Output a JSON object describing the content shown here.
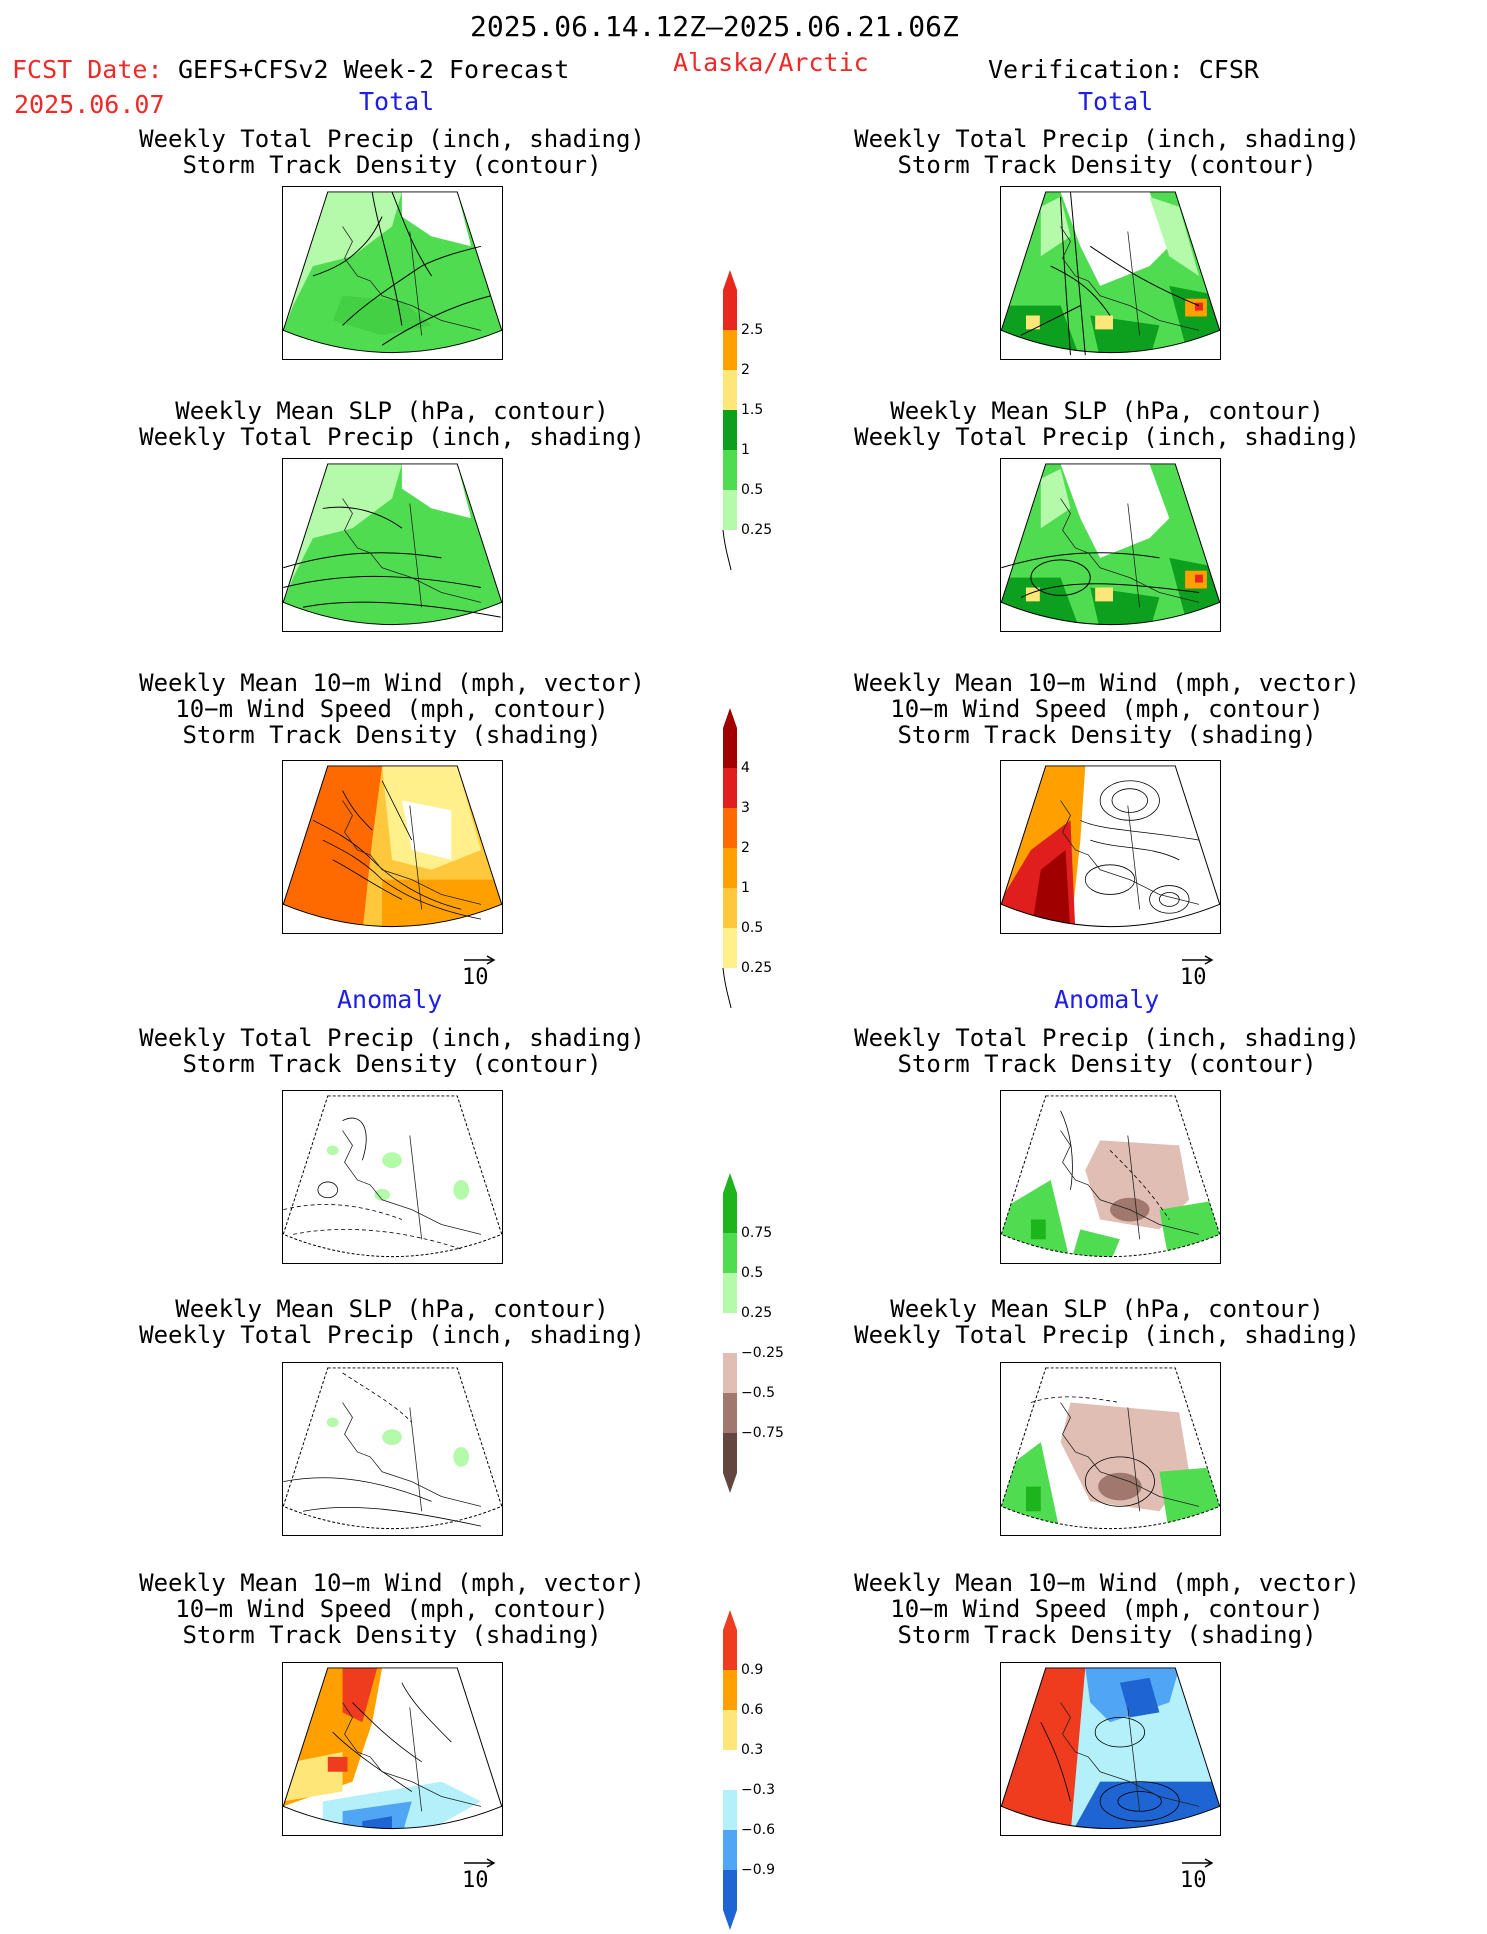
{
  "header": {
    "date_range": "2025.06.14.12Z–2025.06.21.06Z",
    "fcst_label": "FCST Date:",
    "model": "GEFS+CFSv2 Week-2 Forecast",
    "fcst_date": "2025.06.07",
    "region": "Alaska/Arctic",
    "verification": "Verification: CFSR"
  },
  "sections": {
    "total": "Total",
    "anomaly": "Anomaly"
  },
  "panel_titles": {
    "precip_storm": [
      "Weekly Total Precip (inch, shading)",
      "Storm Track Density (contour)"
    ],
    "slp_precip": [
      "Weekly Mean SLP (hPa, contour)",
      "Weekly Total Precip (inch, shading)"
    ],
    "wind_storm": [
      "Weekly Mean 10−m Wind (mph, vector)",
      "10−m Wind Speed (mph, contour)",
      "Storm Track Density (shading)"
    ]
  },
  "vector_reference": "10",
  "colorbars": [
    {
      "name": "precip-total",
      "labels": [
        "2.5",
        "2",
        "1.5",
        "1",
        "0.5",
        "0.25"
      ],
      "colors": [
        "#e8281e",
        "#ffa000",
        "#ffe678",
        "#0ca01e",
        "#50dc50",
        "#b4faaa"
      ]
    },
    {
      "name": "storm-total",
      "labels": [
        "4",
        "3",
        "2",
        "1",
        "0.5",
        "0.25"
      ],
      "colors": [
        "#a00000",
        "#e11e1e",
        "#ff6a00",
        "#ffa000",
        "#ffc83c",
        "#fff08c"
      ]
    },
    {
      "name": "precip-anomaly",
      "labels": [
        "0.75",
        "0.5",
        "0.25",
        "−0.25",
        "−0.5",
        "−0.75"
      ],
      "colors": [
        "#1eb41e",
        "#50dc50",
        "#b4faaa",
        "#ffffff",
        "#e1beb4",
        "#a0786e",
        "#644640"
      ]
    },
    {
      "name": "storm-anomaly",
      "labels": [
        "0.9",
        "0.6",
        "0.3",
        "−0.3",
        "−0.6",
        "−0.9"
      ],
      "colors": [
        "#f03c1e",
        "#ffa000",
        "#ffe678",
        "#ffffff",
        "#b4f0fa",
        "#50a5f5",
        "#1e64d2"
      ]
    }
  ],
  "colors": {
    "red_text": "#f02828",
    "blue_text": "#1e1ee6"
  }
}
